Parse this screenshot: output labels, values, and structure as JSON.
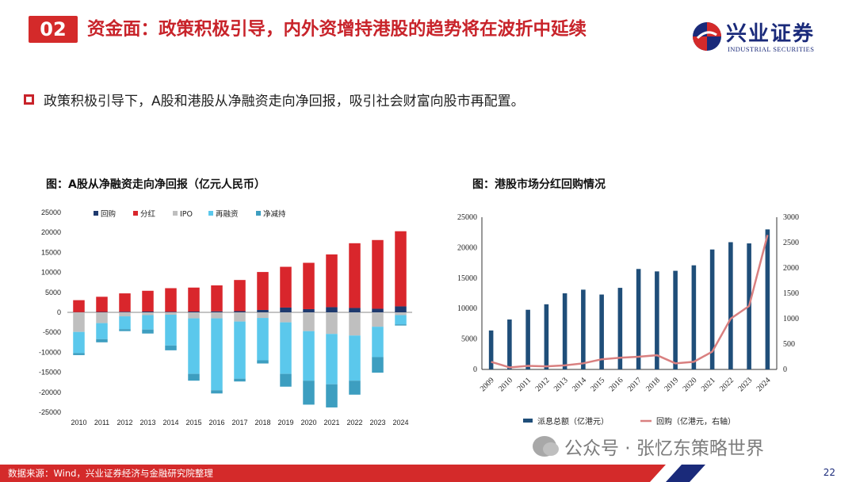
{
  "header": {
    "number": "02",
    "title": "资金面：政策积极引导，内外资增持港股的趋势将在波折中延续",
    "logo_text": "兴业证券",
    "logo_sub": "INDUSTRIAL SECURITIES"
  },
  "bullet": "政策积极引导下，A股和港股从净融资走向净回报，吸引社会财富向股市再配置。",
  "footer": {
    "source": "数据来源：Wind，兴业证券经济与金融研究院整理",
    "page": "22",
    "watermark": "公众号 · 张忆东策略世界"
  },
  "colors": {
    "brand_red": "#d42a2a",
    "brand_navy": "#1a2a7a",
    "buyback": "#1f3a6e",
    "dividend": "#d9262c",
    "ipo": "#bfbfbf",
    "refinance": "#5bc8ec",
    "net_reduction": "#3d9ec0",
    "hk_dividend_bar": "#1f4e79",
    "hk_buyback_line": "#d98080"
  },
  "chart_data": [
    {
      "type": "bar",
      "stacked": true,
      "title": "图：A股从净融资走向净回报（亿元人民币）",
      "categories": [
        "2010",
        "2011",
        "2012",
        "2013",
        "2014",
        "2015",
        "2016",
        "2017",
        "2018",
        "2019",
        "2020",
        "2021",
        "2022",
        "2023",
        "2024"
      ],
      "ylim": [
        -25000,
        25000
      ],
      "yticks": [
        25000,
        20000,
        15000,
        10000,
        5000,
        0,
        -5000,
        -10000,
        -15000,
        -20000,
        -25000
      ],
      "legend_position": "top",
      "series": [
        {
          "name": "回购",
          "values": [
            50,
            100,
            150,
            200,
            150,
            200,
            250,
            300,
            600,
            1200,
            800,
            1300,
            1100,
            900,
            1500
          ]
        },
        {
          "name": "分红",
          "values": [
            3000,
            3800,
            4600,
            5200,
            5900,
            6000,
            6500,
            7800,
            9500,
            10200,
            11600,
            13200,
            16200,
            17200,
            18800
          ]
        },
        {
          "name": "IPO",
          "values": [
            -4900,
            -2700,
            -1000,
            -700,
            -600,
            -1500,
            -1500,
            -2300,
            -1400,
            -2500,
            -4700,
            -5400,
            -5800,
            -3600,
            -700
          ]
        },
        {
          "name": "再融资",
          "values": [
            -5300,
            -4000,
            -3200,
            -3600,
            -7700,
            -13900,
            -18000,
            -14300,
            -10600,
            -12900,
            -12400,
            -12600,
            -11300,
            -7600,
            -2300
          ]
        },
        {
          "name": "净减持",
          "values": [
            -500,
            -800,
            -500,
            -1000,
            -1200,
            -1700,
            -800,
            -700,
            -800,
            -3200,
            -6000,
            -5800,
            -3500,
            -3900,
            -300
          ]
        }
      ]
    },
    {
      "type": "bar",
      "title": "图：港股市场分红回购情况",
      "categories": [
        "2009",
        "2010",
        "2011",
        "2012",
        "2013",
        "2014",
        "2015",
        "2016",
        "2017",
        "2018",
        "2019",
        "2020",
        "2021",
        "2022",
        "2023",
        "2024"
      ],
      "ylim": [
        0,
        25000
      ],
      "yticks": [
        25000,
        20000,
        15000,
        10000,
        5000,
        0
      ],
      "y2lim": [
        0,
        3000
      ],
      "y2ticks": [
        3000,
        2500,
        2000,
        1500,
        1000,
        500,
        0
      ],
      "legend_position": "bottom",
      "series": [
        {
          "name": "派息总额（亿港元）",
          "type": "bar",
          "axis": "left",
          "values": [
            6400,
            8200,
            9800,
            10700,
            12500,
            13100,
            12300,
            13400,
            16500,
            16100,
            16200,
            17100,
            19700,
            20900,
            20700,
            23000
          ]
        },
        {
          "name": "回购（亿港元，右轴）",
          "type": "line",
          "axis": "right",
          "values": [
            150,
            40,
            70,
            60,
            80,
            120,
            200,
            230,
            250,
            280,
            120,
            150,
            350,
            1000,
            1250,
            2650
          ]
        }
      ]
    }
  ]
}
